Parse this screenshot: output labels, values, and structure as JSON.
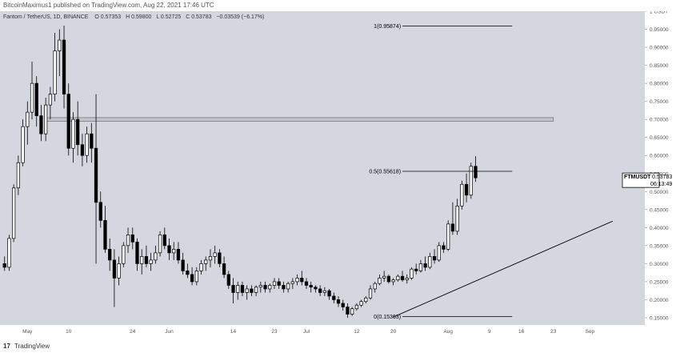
{
  "header": {
    "publisher": "BitcoinMaximus1 published on TradingView.com, Aug 22, 2021 17:46 UTC"
  },
  "legend": {
    "symbol_title": "Fantom / TetherUS, 1D, BINANCE",
    "open": "O 0.57353",
    "high": "H 0.59800",
    "low": "L 0.52725",
    "close": "C 0.53783",
    "change": "−0.03539 (−6.17%)"
  },
  "price_tag": {
    "symbol": "FTMUSDT",
    "price": "0.53783",
    "timer": "06:13:49"
  },
  "footer": {
    "logo": "17",
    "brand": "TradingView"
  },
  "colors": {
    "background": "#d5d7e0",
    "candle": "#000000",
    "candle_up_fill": "#ffffff",
    "zone_fill": "#c3c5cc",
    "tag_bg": "#ffffff"
  },
  "chart_data": {
    "type": "candlestick",
    "y_axis": {
      "ylim": [
        0.13,
        1.0
      ],
      "ticks": [
        "1 USDT",
        "0.95000",
        "0.90000",
        "0.85000",
        "0.80000",
        "0.75000",
        "0.70000",
        "0.65000",
        "0.60000",
        "0.55000",
        "0.50000",
        "0.45000",
        "0.40000",
        "0.35000",
        "0.30000",
        "0.25000",
        "0.20000",
        "0.15000"
      ],
      "tick_values": [
        1.0,
        0.95,
        0.9,
        0.85,
        0.8,
        0.75,
        0.7,
        0.65,
        0.6,
        0.55,
        0.5,
        0.45,
        0.4,
        0.35,
        0.3,
        0.25,
        0.2,
        0.15
      ]
    },
    "x_axis": {
      "ticks": [
        "May",
        "10",
        "24",
        "Jun",
        "14",
        "23",
        "Jul",
        "12",
        "20",
        "Aug",
        "9",
        "16",
        "23",
        "Sep"
      ],
      "tick_days": [
        0,
        9,
        23,
        31,
        45,
        54,
        61,
        72,
        80,
        92,
        101,
        108,
        115,
        123
      ],
      "start": "2021-05-01",
      "range_days": [
        -6,
        135
      ]
    },
    "fib_levels": [
      {
        "label": "1(0.95874)",
        "value": 0.95874
      },
      {
        "label": "0.5(0.55618)",
        "value": 0.55618
      },
      {
        "label": "0(0.15363)",
        "value": 0.15363
      }
    ],
    "resistance_zone": [
      0.695,
      0.705
    ],
    "trendline": {
      "from": {
        "day": 80,
        "value": 0.152
      },
      "to": {
        "day": 128,
        "value": 0.418
      }
    },
    "candles": [
      {
        "d": -5,
        "o": 0.3,
        "h": 0.32,
        "l": 0.28,
        "c": 0.29
      },
      {
        "d": -4,
        "o": 0.29,
        "h": 0.38,
        "l": 0.28,
        "c": 0.37
      },
      {
        "d": -3,
        "o": 0.37,
        "h": 0.52,
        "l": 0.36,
        "c": 0.51
      },
      {
        "d": -2,
        "o": 0.51,
        "h": 0.6,
        "l": 0.49,
        "c": 0.58
      },
      {
        "d": -1,
        "o": 0.58,
        "h": 0.7,
        "l": 0.57,
        "c": 0.68
      },
      {
        "d": 0,
        "o": 0.68,
        "h": 0.75,
        "l": 0.63,
        "c": 0.72
      },
      {
        "d": 1,
        "o": 0.72,
        "h": 0.86,
        "l": 0.7,
        "c": 0.8
      },
      {
        "d": 2,
        "o": 0.8,
        "h": 0.82,
        "l": 0.68,
        "c": 0.71
      },
      {
        "d": 3,
        "o": 0.71,
        "h": 0.74,
        "l": 0.64,
        "c": 0.66
      },
      {
        "d": 4,
        "o": 0.66,
        "h": 0.76,
        "l": 0.64,
        "c": 0.74
      },
      {
        "d": 5,
        "o": 0.74,
        "h": 0.79,
        "l": 0.7,
        "c": 0.77
      },
      {
        "d": 6,
        "o": 0.77,
        "h": 0.94,
        "l": 0.75,
        "c": 0.89
      },
      {
        "d": 7,
        "o": 0.89,
        "h": 0.95,
        "l": 0.82,
        "c": 0.92
      },
      {
        "d": 8,
        "o": 0.92,
        "h": 0.96,
        "l": 0.73,
        "c": 0.77
      },
      {
        "d": 9,
        "o": 0.77,
        "h": 0.8,
        "l": 0.6,
        "c": 0.62
      },
      {
        "d": 10,
        "o": 0.62,
        "h": 0.72,
        "l": 0.58,
        "c": 0.7
      },
      {
        "d": 11,
        "o": 0.7,
        "h": 0.75,
        "l": 0.6,
        "c": 0.63
      },
      {
        "d": 12,
        "o": 0.63,
        "h": 0.66,
        "l": 0.57,
        "c": 0.6
      },
      {
        "d": 13,
        "o": 0.6,
        "h": 0.68,
        "l": 0.58,
        "c": 0.66
      },
      {
        "d": 14,
        "o": 0.66,
        "h": 0.69,
        "l": 0.58,
        "c": 0.62
      },
      {
        "d": 15,
        "o": 0.62,
        "h": 0.77,
        "l": 0.3,
        "c": 0.47
      },
      {
        "d": 16,
        "o": 0.47,
        "h": 0.5,
        "l": 0.4,
        "c": 0.42
      },
      {
        "d": 17,
        "o": 0.42,
        "h": 0.46,
        "l": 0.33,
        "c": 0.34
      },
      {
        "d": 18,
        "o": 0.34,
        "h": 0.37,
        "l": 0.28,
        "c": 0.31
      },
      {
        "d": 19,
        "o": 0.31,
        "h": 0.34,
        "l": 0.18,
        "c": 0.26
      },
      {
        "d": 20,
        "o": 0.26,
        "h": 0.32,
        "l": 0.24,
        "c": 0.3
      },
      {
        "d": 21,
        "o": 0.3,
        "h": 0.36,
        "l": 0.29,
        "c": 0.35
      },
      {
        "d": 22,
        "o": 0.35,
        "h": 0.4,
        "l": 0.33,
        "c": 0.38
      },
      {
        "d": 23,
        "o": 0.38,
        "h": 0.4,
        "l": 0.34,
        "c": 0.36
      },
      {
        "d": 24,
        "o": 0.36,
        "h": 0.37,
        "l": 0.28,
        "c": 0.3
      },
      {
        "d": 25,
        "o": 0.3,
        "h": 0.34,
        "l": 0.27,
        "c": 0.32
      },
      {
        "d": 26,
        "o": 0.32,
        "h": 0.35,
        "l": 0.29,
        "c": 0.3
      },
      {
        "d": 27,
        "o": 0.3,
        "h": 0.33,
        "l": 0.28,
        "c": 0.31
      },
      {
        "d": 28,
        "o": 0.31,
        "h": 0.35,
        "l": 0.3,
        "c": 0.33
      },
      {
        "d": 29,
        "o": 0.33,
        "h": 0.39,
        "l": 0.32,
        "c": 0.38
      },
      {
        "d": 30,
        "o": 0.38,
        "h": 0.4,
        "l": 0.34,
        "c": 0.35
      },
      {
        "d": 31,
        "o": 0.35,
        "h": 0.37,
        "l": 0.31,
        "c": 0.33
      },
      {
        "d": 32,
        "o": 0.33,
        "h": 0.36,
        "l": 0.31,
        "c": 0.34
      },
      {
        "d": 33,
        "o": 0.34,
        "h": 0.36,
        "l": 0.3,
        "c": 0.31
      },
      {
        "d": 34,
        "o": 0.31,
        "h": 0.33,
        "l": 0.27,
        "c": 0.28
      },
      {
        "d": 35,
        "o": 0.28,
        "h": 0.3,
        "l": 0.26,
        "c": 0.27
      },
      {
        "d": 36,
        "o": 0.27,
        "h": 0.29,
        "l": 0.24,
        "c": 0.25
      },
      {
        "d": 37,
        "o": 0.25,
        "h": 0.29,
        "l": 0.24,
        "c": 0.28
      },
      {
        "d": 38,
        "o": 0.28,
        "h": 0.31,
        "l": 0.27,
        "c": 0.3
      },
      {
        "d": 39,
        "o": 0.3,
        "h": 0.32,
        "l": 0.28,
        "c": 0.31
      },
      {
        "d": 40,
        "o": 0.31,
        "h": 0.34,
        "l": 0.29,
        "c": 0.32
      },
      {
        "d": 41,
        "o": 0.32,
        "h": 0.35,
        "l": 0.3,
        "c": 0.33
      },
      {
        "d": 42,
        "o": 0.33,
        "h": 0.34,
        "l": 0.29,
        "c": 0.3
      },
      {
        "d": 43,
        "o": 0.3,
        "h": 0.32,
        "l": 0.26,
        "c": 0.27
      },
      {
        "d": 44,
        "o": 0.27,
        "h": 0.28,
        "l": 0.23,
        "c": 0.24
      },
      {
        "d": 45,
        "o": 0.24,
        "h": 0.26,
        "l": 0.19,
        "c": 0.22
      },
      {
        "d": 46,
        "o": 0.22,
        "h": 0.25,
        "l": 0.2,
        "c": 0.24
      },
      {
        "d": 47,
        "o": 0.24,
        "h": 0.25,
        "l": 0.21,
        "c": 0.22
      },
      {
        "d": 48,
        "o": 0.22,
        "h": 0.24,
        "l": 0.2,
        "c": 0.23
      },
      {
        "d": 49,
        "o": 0.23,
        "h": 0.24,
        "l": 0.21,
        "c": 0.22
      },
      {
        "d": 50,
        "o": 0.22,
        "h": 0.24,
        "l": 0.21,
        "c": 0.235
      },
      {
        "d": 51,
        "o": 0.235,
        "h": 0.25,
        "l": 0.22,
        "c": 0.24
      },
      {
        "d": 52,
        "o": 0.24,
        "h": 0.25,
        "l": 0.22,
        "c": 0.23
      },
      {
        "d": 53,
        "o": 0.23,
        "h": 0.245,
        "l": 0.22,
        "c": 0.24
      },
      {
        "d": 54,
        "o": 0.24,
        "h": 0.26,
        "l": 0.23,
        "c": 0.25
      },
      {
        "d": 55,
        "o": 0.25,
        "h": 0.26,
        "l": 0.23,
        "c": 0.24
      },
      {
        "d": 56,
        "o": 0.24,
        "h": 0.25,
        "l": 0.22,
        "c": 0.23
      },
      {
        "d": 57,
        "o": 0.23,
        "h": 0.25,
        "l": 0.22,
        "c": 0.245
      },
      {
        "d": 58,
        "o": 0.245,
        "h": 0.26,
        "l": 0.23,
        "c": 0.25
      },
      {
        "d": 59,
        "o": 0.25,
        "h": 0.27,
        "l": 0.24,
        "c": 0.26
      },
      {
        "d": 60,
        "o": 0.26,
        "h": 0.28,
        "l": 0.24,
        "c": 0.25
      },
      {
        "d": 61,
        "o": 0.25,
        "h": 0.26,
        "l": 0.23,
        "c": 0.24
      },
      {
        "d": 62,
        "o": 0.24,
        "h": 0.25,
        "l": 0.22,
        "c": 0.235
      },
      {
        "d": 63,
        "o": 0.235,
        "h": 0.24,
        "l": 0.22,
        "c": 0.23
      },
      {
        "d": 64,
        "o": 0.23,
        "h": 0.24,
        "l": 0.21,
        "c": 0.22
      },
      {
        "d": 65,
        "o": 0.22,
        "h": 0.235,
        "l": 0.21,
        "c": 0.225
      },
      {
        "d": 66,
        "o": 0.225,
        "h": 0.23,
        "l": 0.2,
        "c": 0.21
      },
      {
        "d": 67,
        "o": 0.21,
        "h": 0.22,
        "l": 0.19,
        "c": 0.2
      },
      {
        "d": 68,
        "o": 0.2,
        "h": 0.21,
        "l": 0.18,
        "c": 0.19
      },
      {
        "d": 69,
        "o": 0.19,
        "h": 0.2,
        "l": 0.17,
        "c": 0.18
      },
      {
        "d": 70,
        "o": 0.18,
        "h": 0.19,
        "l": 0.15,
        "c": 0.16
      },
      {
        "d": 71,
        "o": 0.16,
        "h": 0.18,
        "l": 0.155,
        "c": 0.175
      },
      {
        "d": 72,
        "o": 0.175,
        "h": 0.19,
        "l": 0.17,
        "c": 0.185
      },
      {
        "d": 73,
        "o": 0.185,
        "h": 0.2,
        "l": 0.18,
        "c": 0.195
      },
      {
        "d": 74,
        "o": 0.195,
        "h": 0.21,
        "l": 0.19,
        "c": 0.205
      },
      {
        "d": 75,
        "o": 0.205,
        "h": 0.24,
        "l": 0.2,
        "c": 0.23
      },
      {
        "d": 76,
        "o": 0.23,
        "h": 0.25,
        "l": 0.22,
        "c": 0.245
      },
      {
        "d": 77,
        "o": 0.245,
        "h": 0.27,
        "l": 0.24,
        "c": 0.26
      },
      {
        "d": 78,
        "o": 0.26,
        "h": 0.28,
        "l": 0.25,
        "c": 0.265
      },
      {
        "d": 79,
        "o": 0.265,
        "h": 0.27,
        "l": 0.245,
        "c": 0.25
      },
      {
        "d": 80,
        "o": 0.25,
        "h": 0.26,
        "l": 0.24,
        "c": 0.255
      },
      {
        "d": 81,
        "o": 0.255,
        "h": 0.27,
        "l": 0.25,
        "c": 0.265
      },
      {
        "d": 82,
        "o": 0.265,
        "h": 0.28,
        "l": 0.25,
        "c": 0.255
      },
      {
        "d": 83,
        "o": 0.255,
        "h": 0.27,
        "l": 0.245,
        "c": 0.26
      },
      {
        "d": 84,
        "o": 0.26,
        "h": 0.29,
        "l": 0.255,
        "c": 0.285
      },
      {
        "d": 85,
        "o": 0.285,
        "h": 0.3,
        "l": 0.27,
        "c": 0.28
      },
      {
        "d": 86,
        "o": 0.28,
        "h": 0.31,
        "l": 0.275,
        "c": 0.3
      },
      {
        "d": 87,
        "o": 0.3,
        "h": 0.32,
        "l": 0.28,
        "c": 0.29
      },
      {
        "d": 88,
        "o": 0.29,
        "h": 0.33,
        "l": 0.285,
        "c": 0.32
      },
      {
        "d": 89,
        "o": 0.32,
        "h": 0.34,
        "l": 0.3,
        "c": 0.31
      },
      {
        "d": 90,
        "o": 0.31,
        "h": 0.36,
        "l": 0.305,
        "c": 0.35
      },
      {
        "d": 91,
        "o": 0.35,
        "h": 0.36,
        "l": 0.33,
        "c": 0.34
      },
      {
        "d": 92,
        "o": 0.34,
        "h": 0.42,
        "l": 0.335,
        "c": 0.41
      },
      {
        "d": 93,
        "o": 0.41,
        "h": 0.47,
        "l": 0.38,
        "c": 0.39
      },
      {
        "d": 94,
        "o": 0.39,
        "h": 0.48,
        "l": 0.38,
        "c": 0.46
      },
      {
        "d": 95,
        "o": 0.46,
        "h": 0.53,
        "l": 0.45,
        "c": 0.52
      },
      {
        "d": 96,
        "o": 0.52,
        "h": 0.55,
        "l": 0.47,
        "c": 0.49
      },
      {
        "d": 97,
        "o": 0.49,
        "h": 0.58,
        "l": 0.48,
        "c": 0.57
      },
      {
        "d": 98,
        "o": 0.57,
        "h": 0.598,
        "l": 0.527,
        "c": 0.538
      }
    ]
  }
}
